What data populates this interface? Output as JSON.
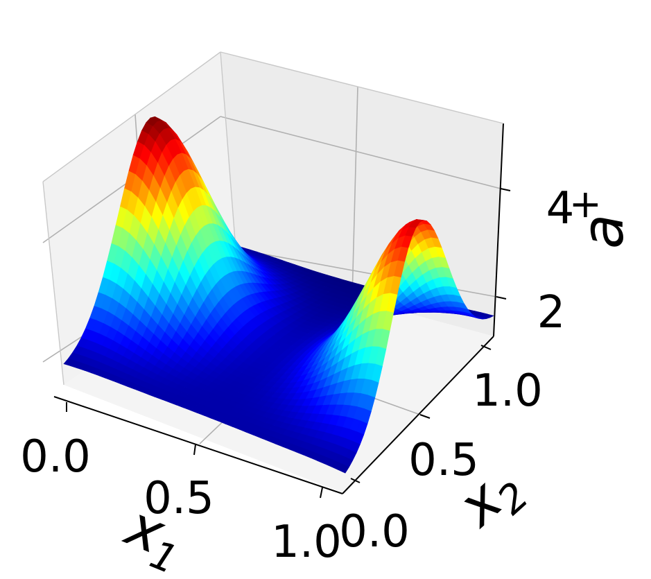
{
  "chart_data": {
    "type": "surface",
    "colormap": "jet",
    "x_axis": {
      "label": "x",
      "label_sub": "1",
      "ticks": [
        "0.0",
        "0.5",
        "1.0"
      ],
      "range": [
        0,
        1
      ]
    },
    "y_axis": {
      "label": "x",
      "label_sub": "2",
      "ticks": [
        "0.0",
        "0.5",
        "1.0"
      ],
      "range": [
        0,
        1
      ]
    },
    "z_axis": {
      "label": "a",
      "label_sup": "+",
      "ticks": [
        "2",
        "4"
      ],
      "range": [
        1,
        5
      ]
    },
    "grid": true,
    "surface_peaks": [
      {
        "x1": 0.0,
        "x2": 0.5,
        "value": 5.0
      },
      {
        "x1": 1.0,
        "x2": 0.5,
        "value": 4.7
      }
    ],
    "surface_min": 1.3
  }
}
